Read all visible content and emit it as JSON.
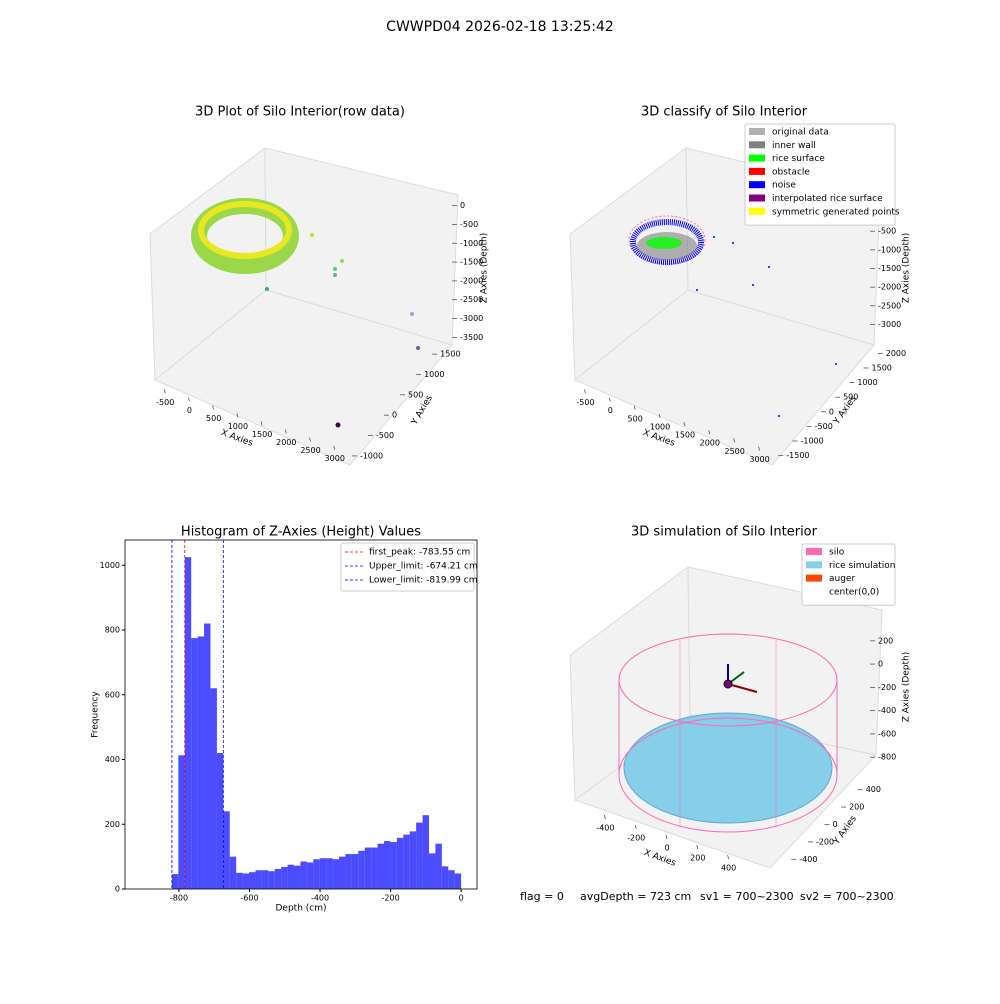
{
  "header": {
    "title": "CWWPD04 2026-02-18 13:25:42"
  },
  "chart_data": [
    {
      "type": "scatter3d",
      "title": "3D Plot of Silo Interior(row data)",
      "xlabel": "X Axies",
      "ylabel": "Y Axies",
      "zlabel": "Z Axies (Depth)",
      "xlim": [
        -650,
        3150
      ],
      "xticks": [
        -500,
        0,
        500,
        1000,
        1500,
        2000,
        2500,
        3000
      ],
      "ylim": [
        -1150,
        1650
      ],
      "yticks": [
        -1000,
        -500,
        0,
        500,
        1000,
        1500
      ],
      "zlim": [
        -3650,
        150
      ],
      "zticks": [
        0,
        -500,
        -1000,
        -1500,
        -2000,
        -2500,
        -3000,
        -3500
      ]
    },
    {
      "type": "scatter3d",
      "title": "3D classify of Silo Interior",
      "xlabel": "X Axies",
      "ylabel": "Y Axies",
      "zlabel": "Z Axies (Depth)",
      "xlim": [
        -650,
        3150
      ],
      "xticks": [
        -500,
        0,
        500,
        1000,
        1500,
        2000,
        2500,
        3000
      ],
      "ylim": [
        -1650,
        2150
      ],
      "yticks": [
        -1500,
        -1000,
        -500,
        0,
        500,
        1000,
        1500,
        2000
      ],
      "zlim": [
        -3150,
        150
      ],
      "zticks": [
        0,
        -500,
        -1000,
        -1500,
        -2000,
        -2500,
        -3000
      ],
      "legend": [
        {
          "name": "original data",
          "color": "#b0b0b0"
        },
        {
          "name": "inner wall",
          "color": "#808080"
        },
        {
          "name": "rice surface",
          "color": "#00ff00"
        },
        {
          "name": "obstacle",
          "color": "#ff0000"
        },
        {
          "name": "noise",
          "color": "#0000ff"
        },
        {
          "name": "interpolated rice surface",
          "color": "#800080"
        },
        {
          "name": "symmetric generated points",
          "color": "#ffff00"
        }
      ]
    },
    {
      "type": "histogram",
      "title": "Histogram of Z-Axies (Height) Values",
      "xlabel": "Depth (cm)",
      "ylabel": "Frequency",
      "color": "#0000ff",
      "bins": [
        -820,
        -801.8,
        -783.6,
        -765.3,
        -747.1,
        -728.9,
        -710.7,
        -692.4,
        -674.2,
        -656.0,
        -637.8,
        -619.6,
        -601.3,
        -583.1,
        -564.9,
        -546.7,
        -528.4,
        -510.2,
        -492.0,
        -473.8,
        -455.6,
        -437.3,
        -419.1,
        -400.9,
        -382.7,
        -364.4,
        -346.2,
        -328.0,
        -309.8,
        -291.6,
        -273.3,
        -255.1,
        -236.9,
        -218.7,
        -200.4,
        -182.2,
        -164.0,
        -145.8,
        -127.6,
        -109.3,
        -91.1,
        -72.9,
        -54.7,
        -36.4,
        -18.2,
        0
      ],
      "values": [
        46,
        413,
        1025,
        775,
        780,
        820,
        620,
        420,
        240,
        100,
        50,
        48,
        52,
        58,
        58,
        55,
        62,
        68,
        75,
        72,
        85,
        82,
        92,
        95,
        95,
        92,
        100,
        108,
        108,
        118,
        128,
        128,
        140,
        148,
        145,
        158,
        168,
        178,
        205,
        228,
        110,
        140,
        70,
        58,
        48
      ],
      "xlim": [
        -953,
        45
      ],
      "xticks": [
        -800,
        -600,
        -400,
        -200,
        0
      ],
      "ylim": [
        0,
        1078
      ],
      "yticks": [
        0,
        200,
        400,
        600,
        800,
        1000
      ],
      "lines": [
        {
          "name": "first_peak: -783.55 cm",
          "value": -783.55,
          "color": "#ff0000"
        },
        {
          "name": "Upper_limit: -674.21 cm",
          "value": -674.21,
          "color": "#0000ff"
        },
        {
          "name": "Lower_limit: -819.99 cm",
          "value": -819.99,
          "color": "#0000ff"
        }
      ],
      "legend_loc": "upper right"
    },
    {
      "type": "surface3d",
      "title": "3D simulation of Silo Interior",
      "xlabel": "X Axies",
      "ylabel": "Y Axies",
      "zlabel": "Z Axies (Depth)",
      "xlim": [
        -500,
        500
      ],
      "xticks": [
        -400,
        -200,
        0,
        200,
        400
      ],
      "ylim": [
        -500,
        500
      ],
      "yticks": [
        -400,
        -200,
        0,
        200,
        400
      ],
      "zlim": [
        -850,
        250
      ],
      "zticks": [
        200,
        0,
        -200,
        -400,
        -600,
        -800
      ],
      "legend": [
        {
          "name": "silo",
          "color": "#ff69b4"
        },
        {
          "name": "rice simulation",
          "color": "#87ceeb"
        },
        {
          "name": "auger",
          "color": "#ff4500"
        },
        {
          "name": "center(0,0)",
          "color": "#ffffff"
        }
      ]
    }
  ],
  "footer": {
    "flag": "flag = 0",
    "avgDepth": "avgDepth = 723 cm",
    "sv1": "sv1 = 700~2300",
    "sv2": "sv2 = 700~2300"
  }
}
